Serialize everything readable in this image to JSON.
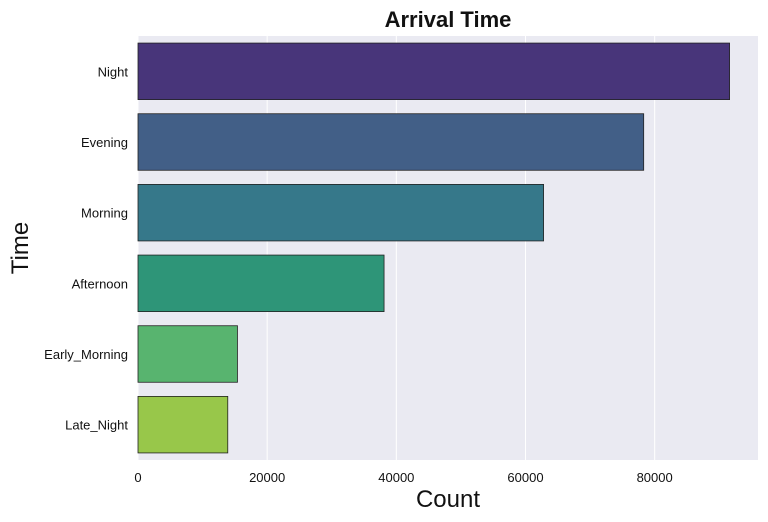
{
  "chart_data": {
    "type": "bar",
    "orientation": "horizontal",
    "title": "Arrival Time",
    "xlabel": "Count",
    "ylabel": "Time",
    "categories": [
      "Night",
      "Evening",
      "Morning",
      "Afternoon",
      "Early_Morning",
      "Late_Night"
    ],
    "values": [
      91600,
      78300,
      62800,
      38100,
      15400,
      13900
    ],
    "colors": [
      "#48357a",
      "#425f87",
      "#36788a",
      "#2e9578",
      "#58b46f",
      "#98c74a"
    ],
    "xlim": [
      0,
      96000
    ],
    "xticks": [
      0,
      20000,
      40000,
      60000,
      80000
    ],
    "grid": true,
    "background": "#eaeaf2"
  }
}
